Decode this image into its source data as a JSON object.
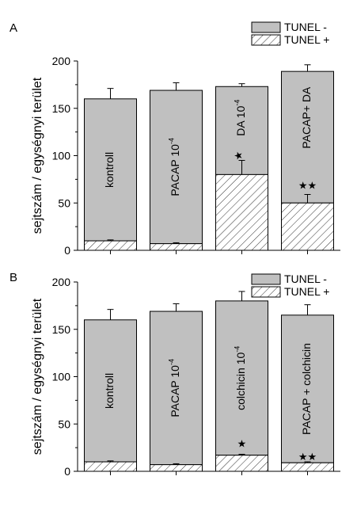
{
  "chart_data": [
    {
      "panel": "A",
      "type": "bar",
      "stacked": true,
      "categories": [
        "kontroll",
        "PACAP 10-4",
        "DA 10-4",
        "PACAP+ DA"
      ],
      "bar_labels": [
        {
          "text": "kontroll"
        },
        {
          "text": "PACAP 10",
          "sup": "-4"
        },
        {
          "text": "DA 10",
          "sup": "-4"
        },
        {
          "text": "PACAP+ DA"
        }
      ],
      "series": [
        {
          "name": "TUNEL +",
          "fill": "hatched",
          "values": [
            10,
            7,
            80,
            50
          ],
          "errors": [
            1,
            1,
            15,
            9
          ]
        },
        {
          "name": "TUNEL -",
          "fill": "#c0c0c0",
          "totals": [
            160,
            169,
            173,
            189
          ],
          "errors": [
            11,
            8,
            3,
            7
          ]
        }
      ],
      "significance": [
        "",
        "",
        "★",
        "★★"
      ],
      "ylabel": "sejtszám / egységnyi terület",
      "ylim": [
        0,
        200
      ],
      "yticks": [
        0,
        50,
        100,
        150,
        200
      ],
      "legend_position": "top-right",
      "grid": false
    },
    {
      "panel": "B",
      "type": "bar",
      "stacked": true,
      "categories": [
        "kontroll",
        "PACAP 10-4",
        "colchicin 10-4",
        "PACAP + colchicin"
      ],
      "bar_labels": [
        {
          "text": "kontroll"
        },
        {
          "text": "PACAP 10",
          "sup": "-4"
        },
        {
          "text": "colchicin 10",
          "sup": "-4"
        },
        {
          "text": "PACAP + colchicin"
        }
      ],
      "series": [
        {
          "name": "TUNEL +",
          "fill": "hatched",
          "values": [
            10,
            7,
            17,
            9
          ],
          "errors": [
            1,
            1,
            1,
            1
          ]
        },
        {
          "name": "TUNEL -",
          "fill": "#c0c0c0",
          "totals": [
            160,
            169,
            180,
            165
          ],
          "errors": [
            11,
            8,
            10,
            11
          ]
        }
      ],
      "significance": [
        "",
        "",
        "★",
        "★★"
      ],
      "ylabel": "sejtszám / egységnyi terület",
      "ylim": [
        0,
        200
      ],
      "yticks": [
        0,
        50,
        100,
        150,
        200
      ],
      "legend_position": "top-right",
      "grid": false
    }
  ]
}
